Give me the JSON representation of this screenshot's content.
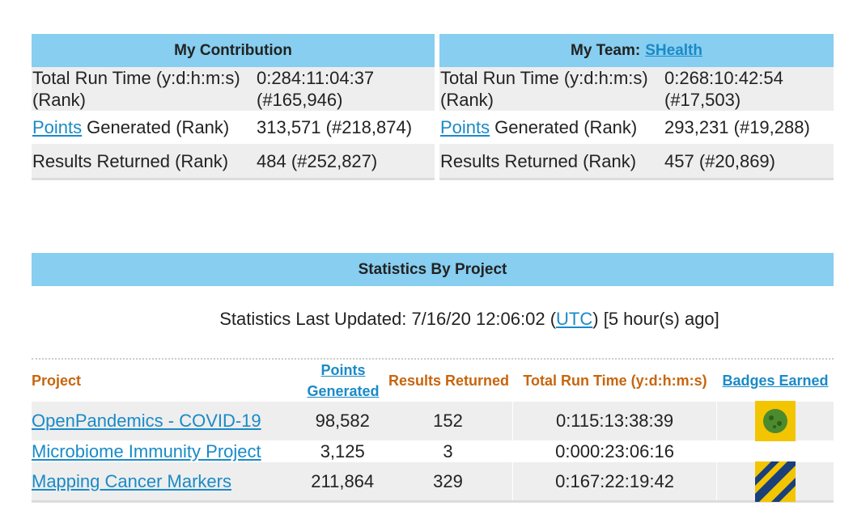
{
  "contribution": {
    "title": "My Contribution",
    "rows": [
      {
        "label": "Total Run Time (y:d:h:m:s) (Rank)",
        "value": "0:284:11:04:37 (#165,946)"
      },
      {
        "link": "Points",
        "label": "Generated (Rank)",
        "value": "313,571 (#218,874)"
      },
      {
        "label": "Results Returned (Rank)",
        "value": "484 (#252,827)"
      }
    ]
  },
  "team": {
    "title": "My Team:",
    "team_name": "SHealth",
    "rows": [
      {
        "label": "Total Run Time (y:d:h:m:s) (Rank)",
        "value": "0:268:10:42:54 (#17,503)"
      },
      {
        "link": "Points",
        "label": "Generated (Rank)",
        "value": "293,231 (#19,288)"
      },
      {
        "label": "Results Returned (Rank)",
        "value": "457 (#20,869)"
      }
    ]
  },
  "statistics": {
    "title": "Statistics By Project",
    "updated_before": "Statistics Last Updated: 7/16/20 12:06:02 (",
    "updated_link": "UTC",
    "updated_after": ") [5 hour(s) ago]",
    "headers": [
      "Project",
      "Points Generated",
      "Results Returned",
      "Total Run Time (y:d:h:m:s)",
      "Badges Earned"
    ],
    "rows": [
      [
        "OpenPandemics - COVID-19",
        "98,582",
        "152",
        "0:115:13:38:39"
      ],
      [
        "Microbiome Immunity Project",
        "3,125",
        "3",
        "0:000:23:06:16"
      ],
      [
        "Mapping Cancer Markers",
        "211,864",
        "329",
        "0:167:22:19:42"
      ]
    ]
  }
}
